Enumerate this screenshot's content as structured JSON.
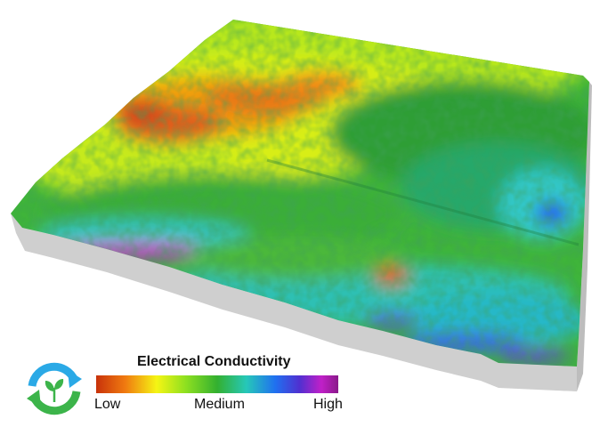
{
  "legend": {
    "title": "Electrical Conductivity",
    "low_label": "Low",
    "medium_label": "Medium",
    "high_label": "High",
    "gradient_colors": [
      "#c8320a",
      "#f07a10",
      "#f5f514",
      "#8ee020",
      "#33b030",
      "#26c8b8",
      "#2070f0",
      "#5030d0",
      "#c020c8",
      "#8a1a8a"
    ]
  },
  "logo": {
    "icon": "recycle-leaf-icon",
    "colors": {
      "arrow_blue": "#2aa9e6",
      "arrow_green": "#3cb44a",
      "leaf": "#ffffff"
    }
  }
}
